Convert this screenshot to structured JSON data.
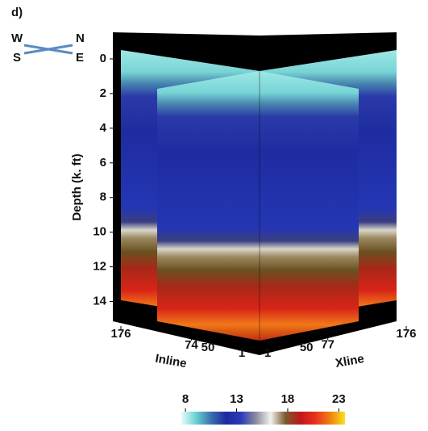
{
  "chart_data": {
    "type": "cube",
    "panel_label": "d)",
    "compass": {
      "nw": "W",
      "ne": "N",
      "sw": "S",
      "se": "E"
    },
    "ylabel": "Depth (k. ft)",
    "ylim": [
      0,
      15
    ],
    "yticks": [
      0,
      2,
      4,
      6,
      8,
      10,
      12,
      14
    ],
    "inline_label": "Inline",
    "inline_lim": [
      176,
      1
    ],
    "inline_ticks": [
      176,
      74,
      50,
      1
    ],
    "xline_label": "Xline",
    "xline_lim": [
      1,
      176
    ],
    "xline_ticks": [
      1,
      50,
      77,
      176
    ],
    "clim": [
      7.6,
      23.6
    ],
    "cticks": [
      8,
      13,
      18,
      23
    ],
    "colormap": [
      "#e8fcfa",
      "#6ad0d0",
      "#3a70b0",
      "#1c2aa0",
      "#2a3ab8",
      "#8a8aa0",
      "#f2f2ee",
      "#7a5a30",
      "#c01818",
      "#e83020",
      "#f08010",
      "#f8e020"
    ]
  }
}
